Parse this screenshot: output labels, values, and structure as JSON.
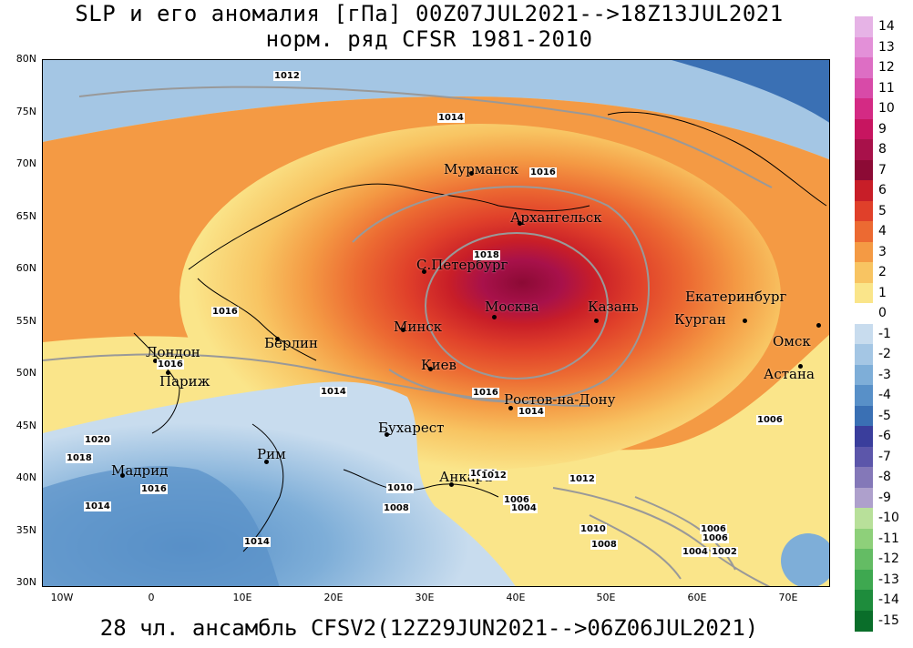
{
  "header": {
    "title_line1": "SLP и его аномалия [гПа] 00Z07JUL2021-->18Z13JUL2021",
    "title_line2": "норм. ряд CFSR 1981-2010"
  },
  "footer": {
    "text": "28 чл. ансамбль CFSV2(12Z29JUN2021-->06Z06JUL2021)"
  },
  "axes": {
    "lat_labels": [
      "80N",
      "75N",
      "70N",
      "65N",
      "60N",
      "55N",
      "50N",
      "45N",
      "40N",
      "35N",
      "30N"
    ],
    "lon_labels": [
      "10W",
      "0",
      "10E",
      "20E",
      "30E",
      "40E",
      "50E",
      "60E",
      "70E"
    ]
  },
  "cities": [
    {
      "name": "Мурманск"
    },
    {
      "name": "Архангельск"
    },
    {
      "name": "С.Петербург"
    },
    {
      "name": "Москва"
    },
    {
      "name": "Казань"
    },
    {
      "name": "Екатеринбург"
    },
    {
      "name": "Курган"
    },
    {
      "name": "Омск"
    },
    {
      "name": "Астана"
    },
    {
      "name": "Минск"
    },
    {
      "name": "Киев"
    },
    {
      "name": "Ростов-на-Дону"
    },
    {
      "name": "Берлин"
    },
    {
      "name": "Лондон"
    },
    {
      "name": "Париж"
    },
    {
      "name": "Бухарест"
    },
    {
      "name": "Рим"
    },
    {
      "name": "Мадрид"
    },
    {
      "name": "Анкара"
    }
  ],
  "isobar_labels": [
    "1012",
    "1014",
    "1016",
    "1018",
    "1016",
    "1016",
    "1016",
    "1014",
    "1014",
    "1014",
    "1020",
    "1018",
    "1016",
    "1014",
    "1014",
    "1010",
    "1008",
    "1012",
    "1012",
    "1006",
    "1004",
    "1010",
    "1008",
    "1006",
    "1006",
    "1004",
    "1002",
    "1006"
  ],
  "colorbar": {
    "labels": [
      "14",
      "13",
      "12",
      "11",
      "10",
      "9",
      "8",
      "7",
      "6",
      "5",
      "4",
      "3",
      "2",
      "1",
      "0",
      "-1",
      "-2",
      "-3",
      "-4",
      "-5",
      "-6",
      "-7",
      "-8",
      "-9",
      "-10",
      "-11",
      "-12",
      "-13",
      "-14",
      "-15"
    ],
    "colors": [
      "#e6b3e6",
      "#e390d8",
      "#dd6ec4",
      "#d84aa8",
      "#d42a84",
      "#c71560",
      "#a8114a",
      "#8c0a35",
      "#c81e28",
      "#e0402a",
      "#ec6a32",
      "#f49a44",
      "#f8c462",
      "#fae58a",
      "#ffffff",
      "#c8dcee",
      "#a4c6e4",
      "#7eaed8",
      "#5890c8",
      "#3a70b4",
      "#3a3e9c",
      "#5c56aa",
      "#8478b8",
      "#aea0cc",
      "#b8e09a",
      "#8ed07a",
      "#64bc64",
      "#3ea850",
      "#1e8c3c",
      "#0a6e2a"
    ]
  }
}
